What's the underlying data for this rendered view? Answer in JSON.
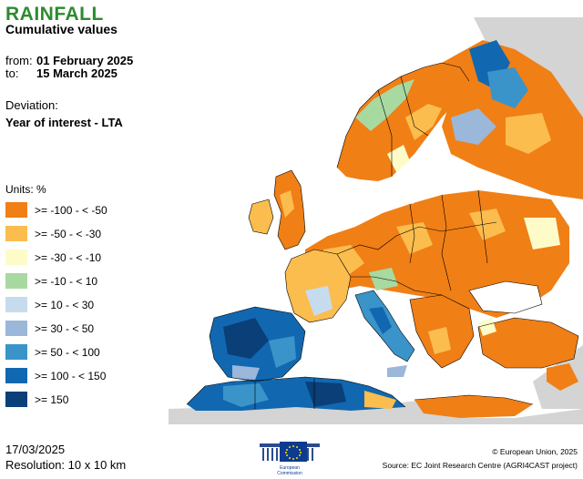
{
  "header": {
    "title": "RAINFALL",
    "subtitle": "Cumulative values",
    "from_label": "from:",
    "from_value": "01 February 2025",
    "to_label": "to:",
    "to_value": "15 March 2025",
    "deviation_label": "Deviation:",
    "deviation_value": "Year of interest - LTA"
  },
  "legend": {
    "units": "Units: %",
    "items": [
      {
        "label": ">= -100 - < -50",
        "color": "#f07f16"
      },
      {
        "label": ">= -50 - < -30",
        "color": "#fbbd4e"
      },
      {
        "label": ">= -30 - < -10",
        "color": "#fdfcc9"
      },
      {
        "label": ">= -10 - < 10",
        "color": "#a8d9a0"
      },
      {
        "label": ">= 10 - < 30",
        "color": "#c6dcee"
      },
      {
        "label": ">= 30 - < 50",
        "color": "#9bb7d9"
      },
      {
        "label": ">= 50 - < 100",
        "color": "#3a94c9"
      },
      {
        "label": ">= 100 - < 150",
        "color": "#1168b0"
      },
      {
        "label": ">= 150",
        "color": "#0a3f78"
      }
    ]
  },
  "footer": {
    "date": "17/03/2025",
    "resolution": "Resolution: 10 x 10 km",
    "copyright": "© European Union, 2025",
    "source": "Source: EC Joint Research Centre (AGRI4CAST project)"
  },
  "logo": {
    "line1": "European",
    "line2": "Commission"
  },
  "colors": {
    "title": "#2e8b2e",
    "nodata": "#d4d4d4",
    "sea": "#ffffff",
    "border": "#000000"
  }
}
